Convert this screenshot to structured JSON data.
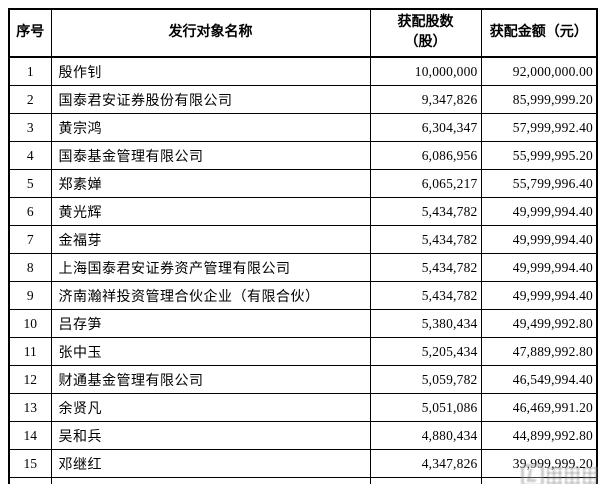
{
  "table": {
    "headers": [
      "序号",
      "发行对象名称",
      "获配股数\n（股）",
      "获配金额（元）"
    ],
    "rows": [
      {
        "no": "1",
        "name": "殷作钊",
        "shares": "10,000,000",
        "amount": "92,000,000.00"
      },
      {
        "no": "2",
        "name": "国泰君安证券股份有限公司",
        "shares": "9,347,826",
        "amount": "85,999,999.20"
      },
      {
        "no": "3",
        "name": "黄宗鸿",
        "shares": "6,304,347",
        "amount": "57,999,992.40"
      },
      {
        "no": "4",
        "name": "国泰基金管理有限公司",
        "shares": "6,086,956",
        "amount": "55,999,995.20"
      },
      {
        "no": "5",
        "name": "郑素婵",
        "shares": "6,065,217",
        "amount": "55,799,996.40"
      },
      {
        "no": "6",
        "name": "黄光辉",
        "shares": "5,434,782",
        "amount": "49,999,994.40"
      },
      {
        "no": "7",
        "name": "金福芽",
        "shares": "5,434,782",
        "amount": "49,999,994.40"
      },
      {
        "no": "8",
        "name": "上海国泰君安证券资产管理有限公司",
        "shares": "5,434,782",
        "amount": "49,999,994.40"
      },
      {
        "no": "9",
        "name": "济南瀚祥投资管理合伙企业（有限合伙）",
        "shares": "5,434,782",
        "amount": "49,999,994.40"
      },
      {
        "no": "10",
        "name": "吕存笋",
        "shares": "5,380,434",
        "amount": "49,499,992.80"
      },
      {
        "no": "11",
        "name": "张中玉",
        "shares": "5,205,434",
        "amount": "47,889,992.80"
      },
      {
        "no": "12",
        "name": "财通基金管理有限公司",
        "shares": "5,059,782",
        "amount": "46,549,994.40"
      },
      {
        "no": "13",
        "name": "余贤凡",
        "shares": "5,051,086",
        "amount": "46,469,991.20"
      },
      {
        "no": "14",
        "name": "吴和兵",
        "shares": "4,880,434",
        "amount": "44,899,992.80"
      },
      {
        "no": "15",
        "name": "邓继红",
        "shares": "4,347,826",
        "amount": "39,999,999.20"
      }
    ]
  }
}
